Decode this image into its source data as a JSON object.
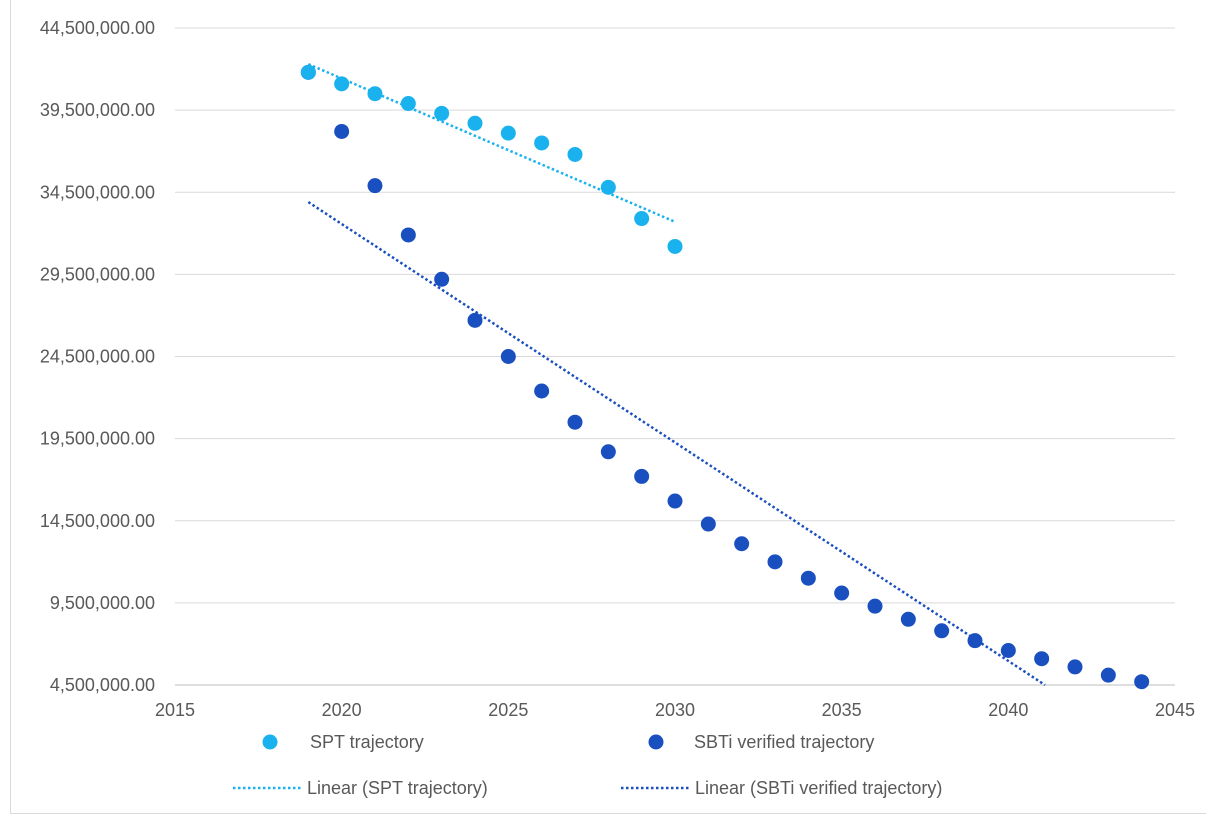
{
  "chart_data": {
    "type": "scatter",
    "title": "",
    "xlabel": "",
    "ylabel": "",
    "xlim": [
      2015,
      2045
    ],
    "ylim": [
      4500000,
      44500000
    ],
    "x_ticks": [
      2015,
      2020,
      2025,
      2030,
      2035,
      2040,
      2045
    ],
    "y_ticks": [
      4500000,
      9500000,
      14500000,
      19500000,
      24500000,
      29500000,
      34500000,
      39500000,
      44500000
    ],
    "x_tick_labels": [
      "2015",
      "2020",
      "2025",
      "2030",
      "2035",
      "2040",
      "2045"
    ],
    "y_tick_labels": [
      "4,500,000.00",
      "9,500,000.00",
      "14,500,000.00",
      "19,500,000.00",
      "24,500,000.00",
      "29,500,000.00",
      "34,500,000.00",
      "39,500,000.00",
      "44,500,000.00"
    ],
    "grid": "horizontal",
    "legend_position": "bottom",
    "series": [
      {
        "name": "SPT trajectory",
        "color": "#1ab2ee",
        "marker": "circle",
        "x": [
          2019,
          2020,
          2021,
          2022,
          2023,
          2024,
          2025,
          2026,
          2027,
          2028,
          2029,
          2030
        ],
        "y": [
          41800000,
          41100000,
          40500000,
          39900000,
          39300000,
          38700000,
          38100000,
          37500000,
          36800000,
          34800000,
          32900000,
          31200000
        ]
      },
      {
        "name": "SBTi verified trajectory",
        "color": "#1a4fbf",
        "marker": "circle",
        "x": [
          2019,
          2020,
          2021,
          2022,
          2023,
          2024,
          2025,
          2026,
          2027,
          2028,
          2029,
          2030,
          2031,
          2032,
          2033,
          2034,
          2035,
          2036,
          2037,
          2038,
          2039,
          2040,
          2041,
          2042,
          2043,
          2044
        ],
        "y": [
          41800000,
          38200000,
          34900000,
          31900000,
          29200000,
          26700000,
          24500000,
          22400000,
          20500000,
          18700000,
          17200000,
          15700000,
          14300000,
          13100000,
          12000000,
          11000000,
          10100000,
          9300000,
          8500000,
          7800000,
          7200000,
          6600000,
          6100000,
          5600000,
          5100000,
          4700000
        ]
      }
    ],
    "trendlines": [
      {
        "name": "Linear (SPT trajectory)",
        "color": "#1ab2ee",
        "style": "dotted",
        "x": [
          2019,
          2030
        ],
        "y": [
          42300000,
          32700000
        ]
      },
      {
        "name": "Linear (SBTi verified trajectory)",
        "color": "#1a4fbf",
        "style": "dotted",
        "x": [
          2019,
          2041.1
        ],
        "y": [
          33900000,
          4500000
        ]
      }
    ]
  }
}
